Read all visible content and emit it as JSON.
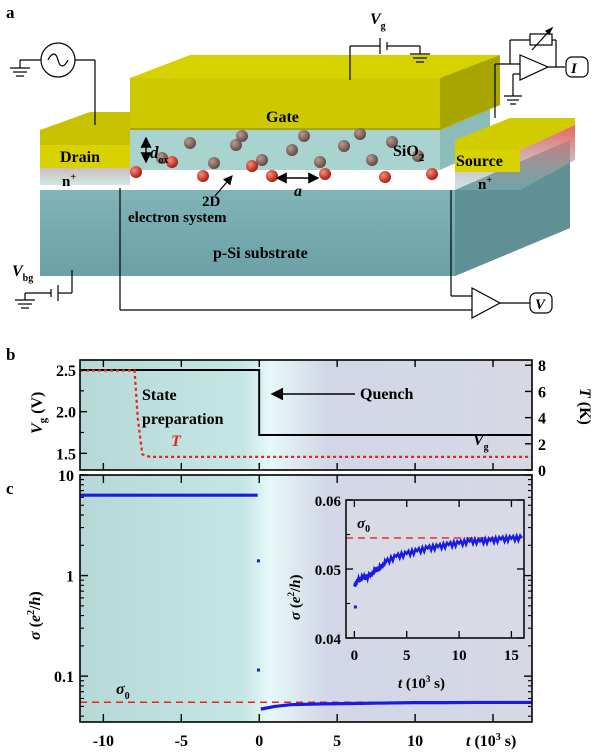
{
  "panel_a": {
    "letter": "a",
    "gate_label": "Gate",
    "drain_label": "Drain",
    "source_label": "Source",
    "drain_doping": "n",
    "source_doping": "n",
    "doping_sup": "+",
    "oxide_label": "SiO",
    "oxide_sub": "2",
    "electron_system_line1": "2D",
    "electron_system_line2": "electron system",
    "substrate_label": "p-Si substrate",
    "dox_label": "d",
    "dox_sub": "ox",
    "a_label": "a",
    "vg_label": "V",
    "vg_sub": "g",
    "vbg_label": "V",
    "vbg_sub": "bg",
    "current_meter": "I",
    "voltage_meter": "V",
    "colors": {
      "gate": "#c8c400",
      "substrate": "#7fb2b6",
      "oxide": "#a8d4d0",
      "electron": "#c2281c",
      "doped": "#e0504a"
    }
  },
  "panel_b": {
    "letter": "b",
    "state_prep_line1": "State",
    "state_prep_line2": "preparation",
    "quench_label": "Quench",
    "vg_trace_label": "V",
    "vg_trace_sub": "g",
    "t_trace_label": "T"
  },
  "panel_c": {
    "letter": "c",
    "sigma0_label": "σ",
    "sigma0_sub": "0",
    "inset_sigma0_label": "σ",
    "inset_sigma0_sub": "0"
  },
  "chart_data": [
    {
      "type": "line",
      "panel": "b",
      "xlim": [
        -11.5,
        17.5
      ],
      "left_axis": {
        "label": "V_g (V)",
        "lim": [
          1.3,
          2.62
        ],
        "ticks": [
          "2.5",
          "2.0",
          "1.5"
        ]
      },
      "right_axis": {
        "label": "T (K)",
        "lim": [
          0,
          8.4
        ],
        "ticks": [
          "8",
          "6",
          "4",
          "2",
          "0"
        ]
      },
      "series": [
        {
          "name": "V_g",
          "axis": "left",
          "color": "#000000",
          "style": "solid",
          "x": [
            -11.5,
            0,
            0,
            17.5
          ],
          "y": [
            2.5,
            2.5,
            1.72,
            1.72
          ]
        },
        {
          "name": "T",
          "axis": "right",
          "color": "#e8231c",
          "style": "dotted",
          "x": [
            -11.5,
            -8.0,
            -7.8,
            -7.5,
            -7.0,
            17.5
          ],
          "y": [
            7.6,
            7.6,
            4.0,
            1.2,
            1.0,
            1.0
          ]
        }
      ]
    },
    {
      "type": "line",
      "panel": "c",
      "xlabel": "t (10^3 s)",
      "ylabel": "σ (e²/h)",
      "yscale": "log",
      "xlim": [
        -11.5,
        17.5
      ],
      "ylim": [
        0.035,
        10
      ],
      "xticks": [
        "-10",
        "-5",
        "0",
        "5",
        "10"
      ],
      "yticks": [
        "10",
        "1",
        "0.1"
      ],
      "reference_line": {
        "name": "σ0",
        "y": 0.055,
        "color": "#e8231c",
        "style": "dashed"
      },
      "series": [
        {
          "name": "σ",
          "color": "#1a1ae6",
          "x": [
            -11.5,
            -5,
            -0.1,
            0.1,
            1,
            2,
            4,
            6,
            8,
            10,
            12,
            14,
            16,
            17.5
          ],
          "y": [
            6.3,
            6.3,
            6.3,
            0.047,
            0.05,
            0.052,
            0.053,
            0.0535,
            0.054,
            0.0545,
            0.0545,
            0.0548,
            0.0548,
            0.0548
          ]
        },
        {
          "name": "points",
          "color": "#1a1ae6",
          "x": [
            -0.05,
            -0.05
          ],
          "y": [
            1.4,
            0.115
          ]
        }
      ]
    },
    {
      "type": "line",
      "panel": "c-inset",
      "xlabel": "t (10^3 s)",
      "ylabel": "σ (e²/h)",
      "xlim": [
        -0.8,
        16.2
      ],
      "ylim": [
        0.04,
        0.06
      ],
      "xticks": [
        "0",
        "5",
        "10",
        "15"
      ],
      "yticks": [
        "0.06",
        "0.05",
        "0.04"
      ],
      "reference_line": {
        "name": "σ0",
        "y": 0.0545,
        "color": "#e8231c",
        "style": "dashed"
      },
      "series": [
        {
          "name": "σ",
          "color": "#1a1ae6",
          "x": [
            0,
            0.3,
            0.8,
            1.5,
            2,
            2.5,
            3,
            4,
            5,
            6,
            7,
            8,
            9,
            10,
            11,
            12,
            13,
            14,
            15,
            16
          ],
          "y": [
            0.0475,
            0.0483,
            0.0487,
            0.049,
            0.0498,
            0.0502,
            0.051,
            0.0518,
            0.0522,
            0.0526,
            0.053,
            0.0532,
            0.0535,
            0.0537,
            0.054,
            0.054,
            0.0541,
            0.0543,
            0.0544,
            0.0545
          ]
        },
        {
          "name": "outlier",
          "color": "#1a1ae6",
          "x": [
            0.1
          ],
          "y": [
            0.0445
          ]
        }
      ]
    }
  ]
}
